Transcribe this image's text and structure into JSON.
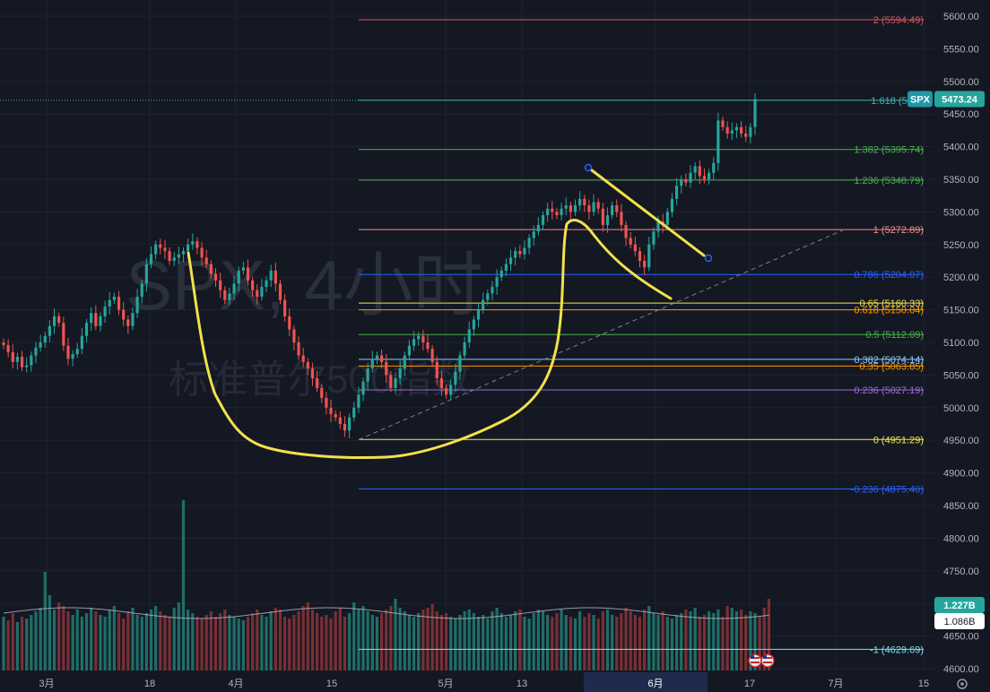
{
  "chart_data": {
    "type": "candlestick",
    "watermark": {
      "line1": "SPX, 4小时",
      "line2": "标准普尔500指数"
    },
    "symbol": "SPX",
    "last_price": "5473.24",
    "volume_labels": [
      "1.227B",
      "1.086B"
    ],
    "y_axis": {
      "min": 4600,
      "max": 5600,
      "ticks": [
        4600,
        4650,
        4700,
        4750,
        4800,
        4850,
        4900,
        4950,
        5000,
        5050,
        5100,
        5150,
        5200,
        5250,
        5300,
        5350,
        5400,
        5450,
        5500,
        5550,
        5600
      ],
      "tick_labels": [
        "4600.00",
        "4650.00",
        "4700.00",
        "4750.00",
        "4800.00",
        "4850.00",
        "4900.00",
        "4950.00",
        "5000.00",
        "5050.00",
        "5100.00",
        "5150.00",
        "5200.00",
        "5250.00",
        "5300.00",
        "5350.00",
        "5400.00",
        "5450.00",
        "5500.00",
        "5550.00",
        "5600.00"
      ]
    },
    "x_axis": {
      "labels": [
        "3月",
        "18",
        "4月",
        "15",
        "5月",
        "13",
        "6月",
        "17",
        "7月",
        "15"
      ],
      "highlighted": "6月"
    },
    "fibonacci": [
      {
        "level": "2",
        "value": 5594.49,
        "label": "2 (5594.49)",
        "color": "#e05252"
      },
      {
        "level": "1.618",
        "value": 5471.0,
        "label": "1.618 (5471",
        "color": "#3fb5b5"
      },
      {
        "level": "1.382",
        "value": 5395.74,
        "label": "1.382 (5395.74)",
        "color": "#4caf50"
      },
      {
        "level": "1.236",
        "value": 5348.79,
        "label": "1.236 (5348.79)",
        "color": "#4caf50"
      },
      {
        "level": "1",
        "value": 5272.89,
        "label": "1 (5272.89)",
        "color": "#f08c8c"
      },
      {
        "level": "0.786",
        "value": 5204.07,
        "label": "0.786 (5204.07)",
        "color": "#2962ff"
      },
      {
        "level": "0.65",
        "value": 5160.33,
        "label": "0.65 (5160.33)",
        "color": "#f2e14a"
      },
      {
        "level": "0.618",
        "value": 5150.04,
        "label": "0.618 (5150.04)",
        "color": "#ff9800"
      },
      {
        "level": "0.5",
        "value": 5112.09,
        "label": "0.5 (5112.09)",
        "color": "#4caf50"
      },
      {
        "level": "0.382",
        "value": 5074.14,
        "label": "0.382 (5074.14)",
        "color": "#90caf9"
      },
      {
        "level": "0.35",
        "value": 5063.85,
        "label": "0.35 (5063.85)",
        "color": "#ff9800"
      },
      {
        "level": "0.236",
        "value": 5027.19,
        "label": "0.236 (5027.19)",
        "color": "#9c6ade"
      },
      {
        "level": "0",
        "value": 4951.29,
        "label": "0 (4951.29)",
        "color": "#f2e14a"
      },
      {
        "level": "-0.236",
        "value": 4875.4,
        "label": "-0.236 (4875.40)",
        "color": "#2962ff"
      },
      {
        "level": "-1",
        "value": 4629.69,
        "label": "-1 (4629.69)",
        "color": "#80deea"
      }
    ],
    "series_close": [
      5096,
      5085,
      5070,
      5078,
      5062,
      5065,
      5080,
      5092,
      5100,
      5110,
      5125,
      5140,
      5130,
      5095,
      5075,
      5082,
      5090,
      5110,
      5130,
      5145,
      5125,
      5140,
      5155,
      5165,
      5170,
      5150,
      5135,
      5125,
      5145,
      5170,
      5190,
      5220,
      5235,
      5250,
      5245,
      5240,
      5225,
      5230,
      5235,
      5240,
      5250,
      5255,
      5245,
      5230,
      5220,
      5205,
      5195,
      5180,
      5165,
      5175,
      5190,
      5210,
      5215,
      5195,
      5180,
      5170,
      5185,
      5195,
      5210,
      5190,
      5165,
      5140,
      5120,
      5100,
      5080,
      5070,
      5060,
      5045,
      5030,
      5015,
      5000,
      4990,
      4985,
      4975,
      4965,
      4985,
      5000,
      5020,
      5040,
      5060,
      5075,
      5080,
      5070,
      5050,
      5030,
      5045,
      5060,
      5080,
      5095,
      5105,
      5110,
      5100,
      5090,
      5070,
      5045,
      5030,
      5020,
      5035,
      5055,
      5080,
      5100,
      5120,
      5135,
      5150,
      5165,
      5175,
      5185,
      5200,
      5210,
      5220,
      5230,
      5240,
      5235,
      5245,
      5260,
      5270,
      5280,
      5295,
      5305,
      5300,
      5295,
      5305,
      5310,
      5300,
      5310,
      5320,
      5310,
      5300,
      5315,
      5305,
      5280,
      5295,
      5310,
      5300,
      5280,
      5260,
      5250,
      5240,
      5225,
      5215,
      5250,
      5270,
      5285,
      5280,
      5300,
      5320,
      5340,
      5350,
      5345,
      5360,
      5370,
      5355,
      5350,
      5360,
      5375,
      5440,
      5430,
      5420,
      5425,
      5430,
      5420,
      5415,
      5430,
      5473
    ],
    "volume_relative": [
      0.3,
      0.28,
      0.32,
      0.27,
      0.3,
      0.29,
      0.31,
      0.33,
      0.35,
      0.55,
      0.42,
      0.34,
      0.38,
      0.36,
      0.33,
      0.31,
      0.34,
      0.3,
      0.32,
      0.35,
      0.33,
      0.31,
      0.3,
      0.34,
      0.36,
      0.32,
      0.29,
      0.33,
      0.35,
      0.31,
      0.3,
      0.32,
      0.34,
      0.36,
      0.33,
      0.31,
      0.3,
      0.35,
      0.38,
      0.95,
      0.34,
      0.32,
      0.3,
      0.29,
      0.31,
      0.33,
      0.3,
      0.32,
      0.34,
      0.31,
      0.3,
      0.29,
      0.28,
      0.3,
      0.32,
      0.34,
      0.31,
      0.3,
      0.33,
      0.35,
      0.34,
      0.3,
      0.29,
      0.31,
      0.33,
      0.36,
      0.38,
      0.34,
      0.32,
      0.3,
      0.31,
      0.29,
      0.33,
      0.35,
      0.3,
      0.32,
      0.38,
      0.34,
      0.36,
      0.33,
      0.31,
      0.3,
      0.32,
      0.34,
      0.36,
      0.4,
      0.35,
      0.33,
      0.31,
      0.3,
      0.32,
      0.34,
      0.35,
      0.37,
      0.33,
      0.31,
      0.32,
      0.3,
      0.29,
      0.31,
      0.33,
      0.34,
      0.32,
      0.3,
      0.31,
      0.29,
      0.33,
      0.35,
      0.32,
      0.3,
      0.31,
      0.33,
      0.34,
      0.3,
      0.29,
      0.32,
      0.34,
      0.33,
      0.31,
      0.3,
      0.32,
      0.34,
      0.31,
      0.3,
      0.29,
      0.33,
      0.3,
      0.32,
      0.31,
      0.29,
      0.33,
      0.34,
      0.31,
      0.3,
      0.32,
      0.35,
      0.33,
      0.31,
      0.3,
      0.34,
      0.36,
      0.32,
      0.31,
      0.33,
      0.3,
      0.29,
      0.31,
      0.32,
      0.34,
      0.33,
      0.35,
      0.3,
      0.31,
      0.33,
      0.32,
      0.34,
      0.3,
      0.36,
      0.35,
      0.33,
      0.34,
      0.31,
      0.33,
      0.32,
      0.3,
      0.35,
      0.4
    ]
  },
  "ui": {
    "settings_icon": "gear-icon",
    "event_icons": [
      "us-flag-icon",
      "us-flag-icon"
    ]
  }
}
